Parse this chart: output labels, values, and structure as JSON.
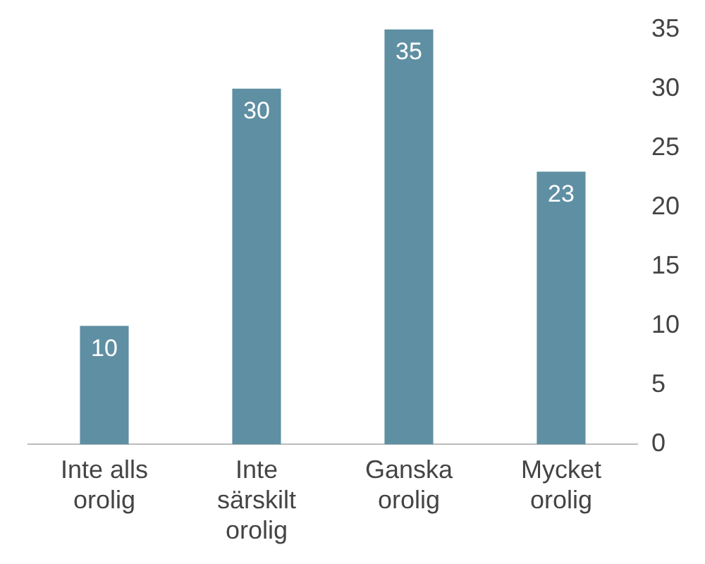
{
  "chart_data": {
    "type": "bar",
    "categories": [
      "Inte alls orolig",
      "Inte särskilt orolig",
      "Ganska orolig",
      "Mycket orolig"
    ],
    "values": [
      10,
      30,
      35,
      23
    ],
    "color": "#5f8fa3",
    "ylim": [
      0,
      35
    ],
    "yticks": [
      0,
      5,
      10,
      15,
      20,
      25,
      30,
      35
    ],
    "grid": false,
    "legend": false,
    "data_labels": true
  }
}
